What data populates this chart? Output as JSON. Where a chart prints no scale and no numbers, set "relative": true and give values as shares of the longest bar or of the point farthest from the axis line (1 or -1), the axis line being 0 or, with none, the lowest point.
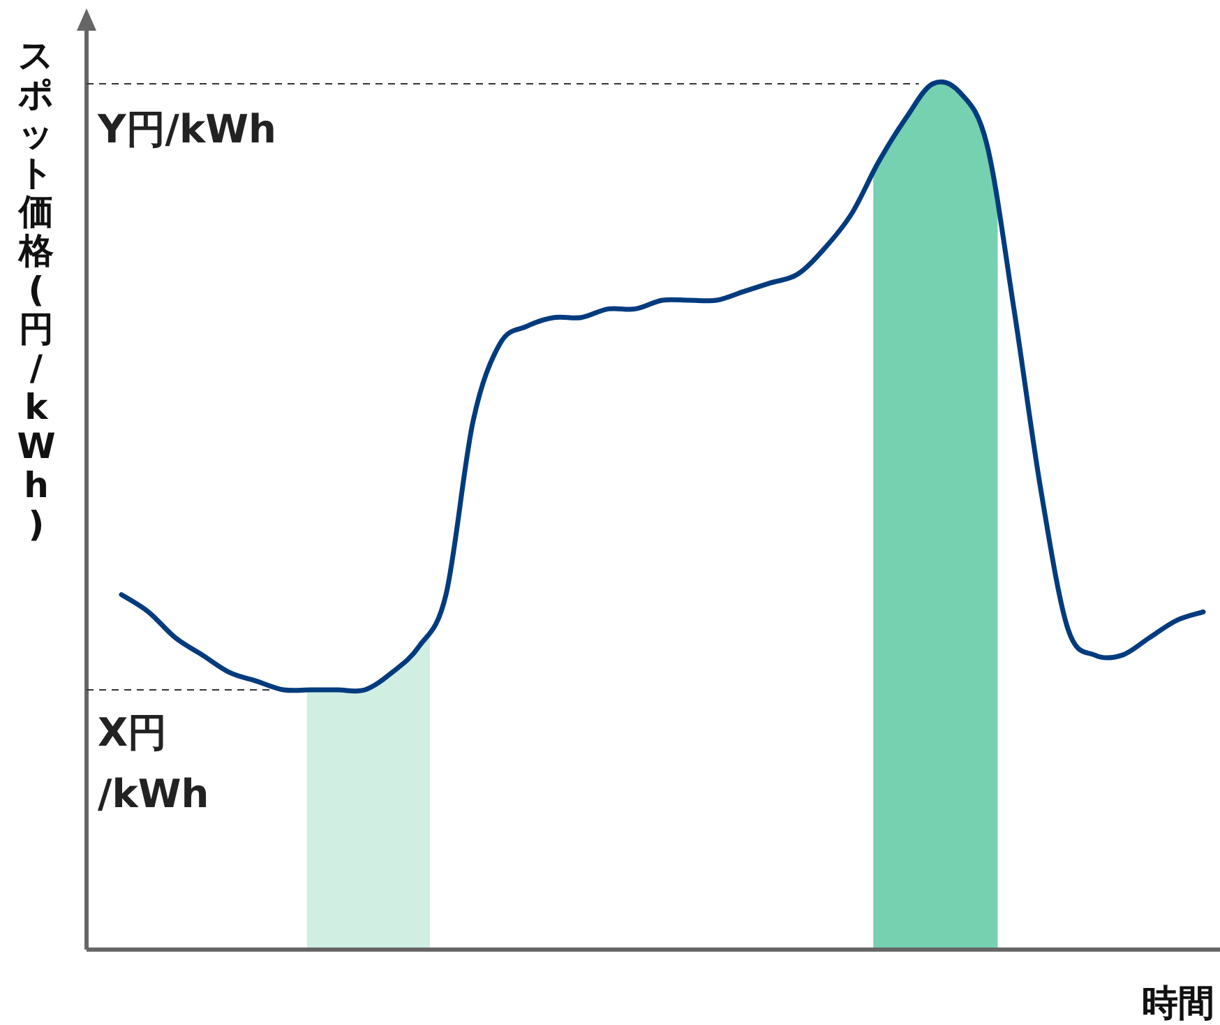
{
  "chart_data": {
    "type": "line",
    "relative": true,
    "xlabel": "時間",
    "ylabel": "スポット価格(円/kWh)",
    "categories": [
      null,
      null,
      null,
      null,
      null,
      null,
      null,
      null,
      null,
      null,
      null,
      null,
      null,
      null,
      null,
      null,
      null,
      null,
      null,
      null,
      null,
      null,
      null,
      null,
      null,
      null,
      null,
      null,
      null,
      null,
      null,
      null,
      null,
      null,
      null,
      null,
      null,
      null,
      null,
      null,
      null
    ],
    "series": [
      {
        "color": "#003b7e",
        "values": [
          0.41,
          0.39,
          0.36,
          0.34,
          0.32,
          0.31,
          0.3,
          0.3,
          0.3,
          0.3,
          0.32,
          0.35,
          0.41,
          0.61,
          0.7,
          0.72,
          0.73,
          0.73,
          0.74,
          0.74,
          0.75,
          0.75,
          0.75,
          0.76,
          0.77,
          0.78,
          0.81,
          0.85,
          0.91,
          0.96,
          1,
          0.99,
          0.93,
          0.74,
          0.53,
          0.37,
          0.34,
          0.34,
          0.36,
          0.38,
          0.39
        ]
      }
    ],
    "ref_lines": [
      {
        "axis": "y",
        "value": 1,
        "label": "Y円/kWh",
        "color": "#333333",
        "line_style": "dashed"
      },
      {
        "axis": "y",
        "value": 0.3,
        "label": "X円\n/kWh",
        "color": "#333333",
        "line_style": "dashed"
      }
    ]
  }
}
